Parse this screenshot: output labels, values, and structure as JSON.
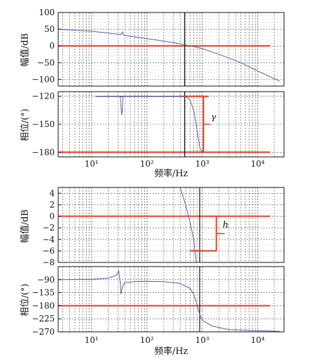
{
  "chart_data": [
    {
      "type": "line",
      "panel": "top-magnitude",
      "x_scale": "log",
      "xlim": [
        2.5,
        30000
      ],
      "ylim": [
        -120,
        100
      ],
      "ylabel": "幅值/dB",
      "yticks": [
        100,
        50,
        0,
        -50,
        -100
      ],
      "grid": true,
      "series": [
        {
          "color": "#5a5fa8",
          "x": [
            2.5,
            10,
            30,
            34,
            36,
            38,
            45,
            100,
            300,
            500,
            700,
            1000,
            2000,
            5000,
            10000,
            25000
          ],
          "y": [
            50,
            44,
            35,
            34,
            42,
            32,
            30,
            22,
            10,
            3,
            -2,
            -8,
            -25,
            -50,
            -75,
            -105
          ]
        }
      ],
      "reference_lines": [
        {
          "axis": "y",
          "value": 0,
          "color": "#e04020"
        }
      ],
      "marker_x": 480
    },
    {
      "type": "line",
      "panel": "top-phase",
      "x_scale": "log",
      "xlim": [
        2.5,
        30000
      ],
      "ylim": [
        -185,
        -115
      ],
      "ylabel": "相位/(°)",
      "xlabel": "频率/Hz",
      "yticks": [
        -120,
        -150,
        -180
      ],
      "xtick_labels": [
        "10¹",
        "10²",
        "10³",
        "10⁴"
      ],
      "xtick_values": [
        10,
        100,
        1000,
        10000
      ],
      "grid": true,
      "series": [
        {
          "color": "#5a5fa8",
          "x": [
            12,
            33,
            35,
            36,
            37,
            40,
            100,
            400,
            500,
            600,
            700,
            800,
            900,
            1000
          ],
          "y": [
            -120,
            -120,
            -140,
            -135,
            -120,
            -120,
            -120,
            -120,
            -120,
            -124,
            -135,
            -155,
            -175,
            -180
          ]
        }
      ],
      "reference_lines": [
        {
          "axis": "y",
          "value": -180,
          "color": "#e04020"
        }
      ],
      "marker_x": 480,
      "annotations": [
        {
          "text": "γ",
          "color": "#e04020"
        }
      ]
    },
    {
      "type": "line",
      "panel": "bottom-magnitude",
      "x_scale": "log",
      "xlim": [
        2.5,
        30000
      ],
      "ylim": [
        -8,
        5
      ],
      "ylabel": "幅值/dB",
      "yticks": [
        4,
        2,
        0,
        -2,
        -4,
        -6,
        -8
      ],
      "grid": true,
      "series": [
        {
          "color": "#5a5fa8",
          "x": [
            400,
            500,
            600,
            700,
            780
          ],
          "y": [
            5,
            2,
            -1,
            -4,
            -8
          ]
        }
      ],
      "reference_lines": [
        {
          "axis": "y",
          "value": 0,
          "color": "#e04020"
        }
      ],
      "marker_x": 900,
      "annotations": [
        {
          "text": "h",
          "color": "#e04020"
        }
      ]
    },
    {
      "type": "line",
      "panel": "bottom-phase",
      "x_scale": "log",
      "xlim": [
        2.5,
        30000
      ],
      "ylim": [
        -270,
        -45
      ],
      "ylabel": "相位/(°)",
      "xlabel": "频率/Hz",
      "yticks": [
        -90,
        -135,
        -180,
        -225,
        -270
      ],
      "xtick_labels": [
        "10¹",
        "10²",
        "10³",
        "10⁴"
      ],
      "xtick_values": [
        10,
        100,
        1000,
        10000
      ],
      "grid": true,
      "series": [
        {
          "color": "#5a5fa8",
          "x": [
            2.5,
            10,
            20,
            28,
            31,
            33,
            34,
            36,
            40,
            60,
            100,
            200,
            400,
            600,
            700,
            800,
            900,
            1000,
            1500,
            3000,
            10000,
            25000
          ],
          "y": [
            -90,
            -89,
            -85,
            -75,
            -60,
            -100,
            -140,
            -115,
            -100,
            -97,
            -96,
            -97,
            -103,
            -120,
            -140,
            -175,
            -210,
            -230,
            -250,
            -262,
            -266,
            -268
          ]
        }
      ],
      "reference_lines": [
        {
          "axis": "y",
          "value": -180,
          "color": "#e04020"
        }
      ],
      "marker_x": 900
    }
  ]
}
